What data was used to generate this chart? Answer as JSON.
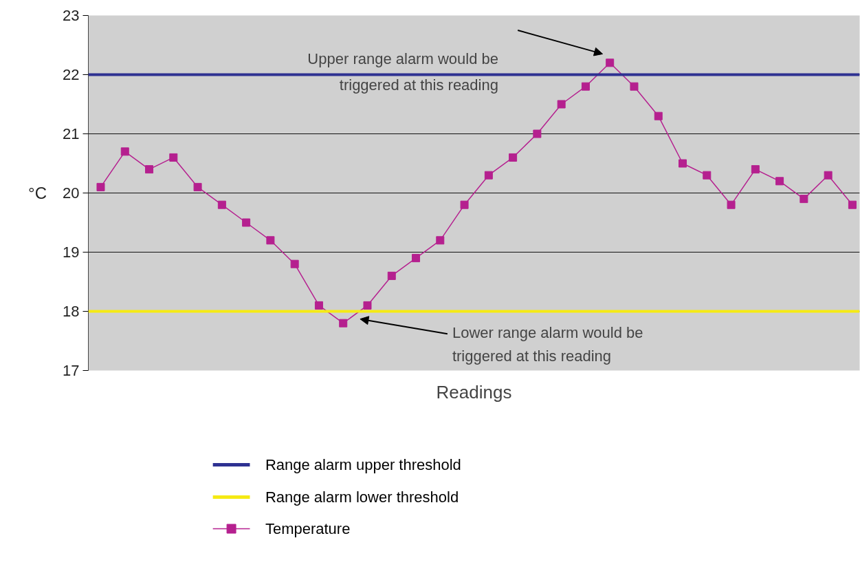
{
  "chart_data": {
    "type": "line",
    "xlabel": "Readings",
    "ylabel": "°C",
    "categories": [
      null,
      null,
      null,
      null,
      null,
      null,
      null,
      null,
      null,
      null,
      null,
      null,
      null,
      null,
      null,
      null,
      null,
      null,
      null,
      null,
      null,
      null,
      null,
      null,
      null,
      null,
      null,
      null,
      null,
      null,
      null,
      null
    ],
    "series": [
      {
        "name": "Temperature",
        "color": "#b5208f",
        "values": [
          20.1,
          20.7,
          20.4,
          20.6,
          20.1,
          19.8,
          19.5,
          19.2,
          18.8,
          18.1,
          17.8,
          18.1,
          18.6,
          18.9,
          19.2,
          19.8,
          20.3,
          20.6,
          21.0,
          21.5,
          21.8,
          22.2,
          21.8,
          21.3,
          20.5,
          20.3,
          19.8,
          20.4,
          20.2,
          19.9,
          20.3,
          19.8
        ]
      }
    ],
    "ref_lines": [
      {
        "axis": "y",
        "value": 22,
        "label": "Range alarm upper threshold",
        "color": "#2e3192"
      },
      {
        "axis": "y",
        "value": 18,
        "label": "Range alarm lower threshold",
        "color": "#f5ea14"
      }
    ],
    "annotations": [
      "Upper range alarm would be triggered at this reading",
      "Lower range alarm would be triggered at this reading"
    ],
    "ylim": [
      17,
      23
    ],
    "yticks": [
      17,
      18,
      19,
      20,
      21,
      22,
      23
    ],
    "grid": "y",
    "legend": "bottom",
    "marker": "square",
    "tick_labels": "y"
  }
}
